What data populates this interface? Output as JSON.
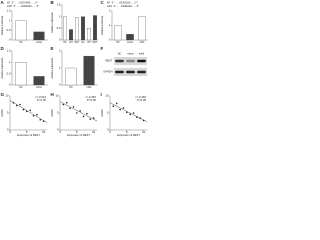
{
  "chart_data": [
    {
      "type": "bar",
      "panel": "A",
      "alignment": [
        "WT 5'...UGCCAAG...3'",
        "miR 3'...ACGGUUC...5'"
      ],
      "y_label": "Relative luciferase",
      "categories": [
        "NC",
        "mimic"
      ],
      "values": [
        1.0,
        0.42
      ],
      "color": "#444444",
      "ylim": [
        0,
        1.5
      ],
      "yticks": [
        0,
        0.5,
        1,
        1.5
      ]
    },
    {
      "type": "bar",
      "panel": "B",
      "y_label": "Relative expression",
      "categories": [
        "NC",
        "WT",
        "MUT",
        "NC",
        "WT",
        "MUT"
      ],
      "values": [
        1.0,
        0.45,
        0.95,
        1.0,
        0.5,
        1.05
      ],
      "color": "#444444",
      "ylim": [
        0,
        1.5
      ],
      "yticks": [
        0,
        0.5,
        1,
        1.5
      ]
    },
    {
      "type": "bar",
      "panel": "C",
      "alignment": [
        "WT 5'...GCACUUU...3'",
        "miR 3'...CGUGAAA...5'"
      ],
      "y_label": "Relative luciferase",
      "categories": [
        "NC",
        "mimic",
        "inhib"
      ],
      "values": [
        1.0,
        0.4,
        1.6
      ],
      "color": "#444444",
      "ylim": [
        0,
        2
      ],
      "yticks": [
        0,
        1,
        2
      ]
    },
    {
      "type": "bar",
      "panel": "D",
      "y_label": "Relative expression",
      "categories": [
        "NC",
        "mimic"
      ],
      "values": [
        1.0,
        0.38
      ],
      "color": "#444444",
      "ylim": [
        0,
        1.5
      ],
      "yticks": [
        0,
        0.5,
        1,
        1.5
      ]
    },
    {
      "type": "bar",
      "panel": "E",
      "y_label": "Relative expression",
      "categories": [
        "NC",
        "inhib"
      ],
      "values": [
        1.0,
        1.7
      ],
      "color": "#444444",
      "ylim": [
        0,
        2
      ],
      "yticks": [
        0,
        1,
        2
      ]
    },
    {
      "type": "blot",
      "panel": "F",
      "categories": [
        "NC",
        "mimic",
        "inhib"
      ],
      "rows": [
        "MEST",
        "GAPDH"
      ]
    },
    {
      "type": "scatter",
      "panel": "G",
      "annotation": [
        "r=-0.521",
        "P<0.05"
      ],
      "x_label": "Expression of MEST",
      "y_label": "miRNA",
      "x": [
        1,
        2,
        3,
        4,
        5,
        6,
        7,
        8,
        9,
        10
      ],
      "y": [
        8,
        7.2,
        7.5,
        6,
        5.5,
        5.8,
        4.2,
        4.5,
        3,
        2.6
      ],
      "xlim": [
        0,
        11
      ],
      "ylim": [
        0,
        10
      ],
      "xticks": [
        0,
        5,
        10
      ],
      "yticks": [
        0,
        5,
        10
      ]
    },
    {
      "type": "scatter",
      "panel": "H",
      "annotation": [
        "r=-0.487",
        "P<0.05"
      ],
      "x_label": "Expression of MEST",
      "y_label": "miRNA",
      "x": [
        1,
        2,
        3,
        4,
        5,
        6,
        7,
        8,
        9,
        10
      ],
      "y": [
        7.5,
        8,
        6.4,
        6.8,
        5,
        5.6,
        4,
        4.8,
        3.2,
        3.5
      ],
      "xlim": [
        0,
        11
      ],
      "ylim": [
        0,
        10
      ],
      "xticks": [
        0,
        5,
        10
      ],
      "yticks": [
        0,
        5,
        10
      ]
    },
    {
      "type": "scatter",
      "panel": "I",
      "annotation": [
        "r=-0.466",
        "P<0.05"
      ],
      "x_label": "Expression of MEST",
      "y_label": "miRNA",
      "x": [
        1,
        2,
        3,
        4,
        5,
        6,
        7,
        8,
        9,
        10
      ],
      "y": [
        7,
        7.8,
        6,
        6.5,
        5.2,
        4.6,
        5,
        3.8,
        3.5,
        2.8
      ],
      "xlim": [
        0,
        11
      ],
      "ylim": [
        0,
        10
      ],
      "xticks": [
        0,
        5,
        10
      ],
      "yticks": [
        0,
        5,
        10
      ]
    }
  ]
}
